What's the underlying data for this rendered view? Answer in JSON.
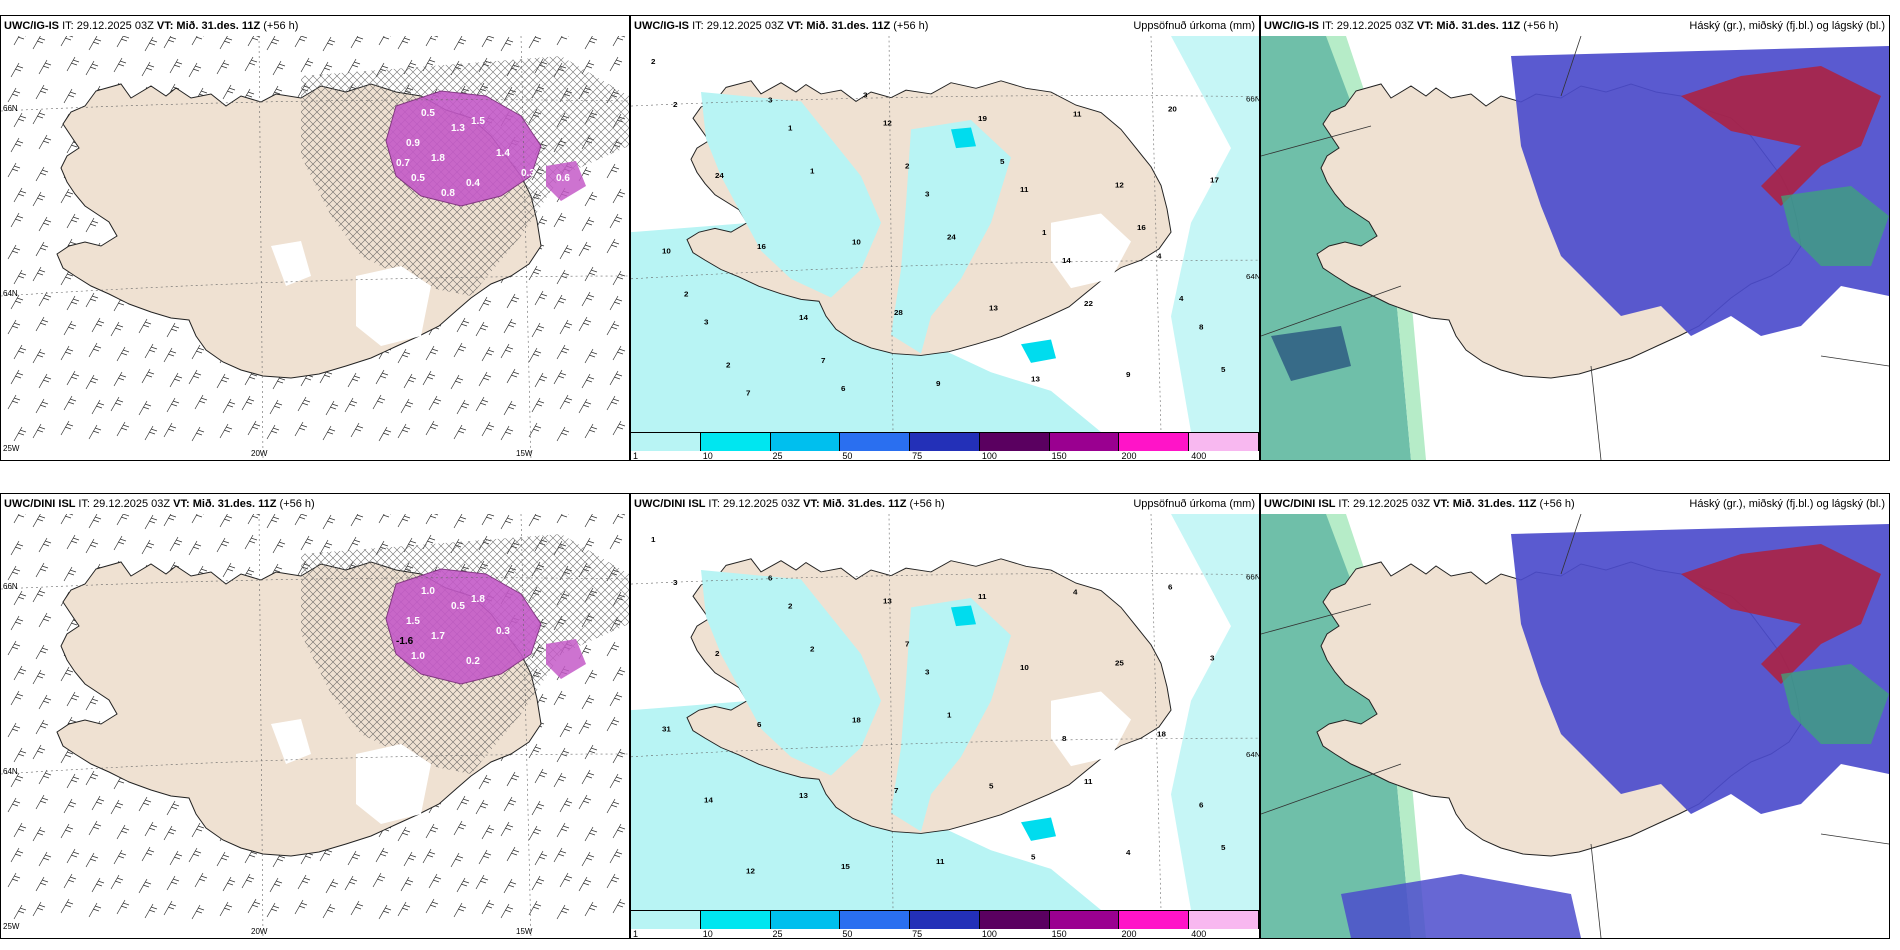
{
  "panels": [
    {
      "model": "UWC/IG-IS",
      "it_label": "IT:",
      "it_value": "29.12.2025 03Z",
      "vt_label": "VT:",
      "vt_value": "Mið. 31.des. 11Z",
      "lead": "(+56 h)",
      "title": "",
      "lat_labels": [
        "66N",
        "64N",
        "25W"
      ],
      "lon_labels": [
        "20W",
        "15W"
      ]
    },
    {
      "model": "UWC/IG-IS",
      "it_label": "IT:",
      "it_value": "29.12.2025 03Z",
      "vt_label": "VT:",
      "vt_value": "Mið. 31.des. 11Z",
      "lead": "(+56 h)",
      "title": "Uppsöfnuð úrkoma (mm)",
      "lat_labels": [
        "66N",
        "64N"
      ],
      "lon_labels": []
    },
    {
      "model": "UWC/IG-IS",
      "it_label": "IT:",
      "it_value": "29.12.2025 03Z",
      "vt_label": "VT:",
      "vt_value": "Mið. 31.des. 11Z",
      "lead": "(+56 h)",
      "title": "Háský (gr.), miðský (fj.bl.) og lágský (bl.)",
      "lat_labels": [],
      "lon_labels": []
    },
    {
      "model": "UWC/DINI ISL",
      "it_label": "IT:",
      "it_value": "29.12.2025 03Z",
      "vt_label": "VT:",
      "vt_value": "Mið. 31.des. 11Z",
      "lead": "(+56 h)",
      "title": "",
      "lat_labels": [
        "66N",
        "64N",
        "25W"
      ],
      "lon_labels": [
        "20W",
        "15W"
      ]
    },
    {
      "model": "UWC/DINI ISL",
      "it_label": "IT:",
      "it_value": "29.12.2025 03Z",
      "vt_label": "VT:",
      "vt_value": "Mið. 31.des. 11Z",
      "lead": "(+56 h)",
      "title": "Uppsöfnuð úrkoma (mm)",
      "lat_labels": [
        "66N",
        "64N"
      ],
      "lon_labels": []
    },
    {
      "model": "UWC/DINI ISL",
      "it_label": "IT:",
      "it_value": "29.12.2025 03Z",
      "vt_label": "VT:",
      "vt_value": "Mið. 31.des. 11Z",
      "lead": "(+56 h)",
      "title": "Háský (gr.), miðský (fj.bl.) og lágský (bl.)",
      "lat_labels": [],
      "lon_labels": []
    }
  ],
  "colorbar": {
    "labels": [
      "1",
      "10",
      "25",
      "50",
      "75",
      "100",
      "150",
      "200",
      "400"
    ],
    "colors": [
      "#b8f4f4",
      "#00e6f0",
      "#00bfee",
      "#2a6ff0",
      "#2330b8",
      "#5a0060",
      "#9a0090",
      "#ff14c8",
      "#f8b8f0"
    ]
  },
  "map_values": {
    "precip_top": [
      "2",
      "1",
      "3",
      "14",
      "8",
      "7",
      "12",
      "11",
      "4",
      "3",
      "6",
      "19",
      "12",
      "10",
      "14",
      "9",
      "11",
      "17",
      "16",
      "28",
      "13",
      "20",
      "24",
      "10",
      "13",
      "9",
      "2",
      "1",
      "24",
      "22",
      "5",
      "3",
      "2",
      "1",
      "4",
      "2",
      "3",
      "5",
      "16",
      "2",
      "7"
    ],
    "precip_bottom": [
      "1",
      "2",
      "3",
      "8",
      "6",
      "12",
      "13",
      "10",
      "18",
      "14",
      "15",
      "11",
      "25",
      "31",
      "13",
      "11",
      "4",
      "3",
      "6",
      "7",
      "5",
      "6",
      "2",
      "18",
      "5",
      "4",
      "3",
      "2",
      "1",
      "11",
      "5",
      "6",
      "7"
    ],
    "wind_top_values": [
      "0.5",
      "1.3",
      "0.9",
      "1.5",
      "1.8",
      "1.4",
      "0.4",
      "0.5",
      "0.7",
      "0.8",
      "0.3",
      "0.6"
    ],
    "wind_bottom_values": [
      "1.0",
      "0.5",
      "1.5",
      "1.8",
      "1.7",
      "0.3",
      "0.2",
      "1.0",
      "-1.6"
    ]
  },
  "colors": {
    "land": "#efe1d2",
    "precip_pink": "#c45ac8",
    "cyan_light": "#b8f4f4",
    "cloud_blue": "#4c4ccc",
    "cloud_green": "#5fb8a0",
    "cloud_red": "#b0203c"
  }
}
